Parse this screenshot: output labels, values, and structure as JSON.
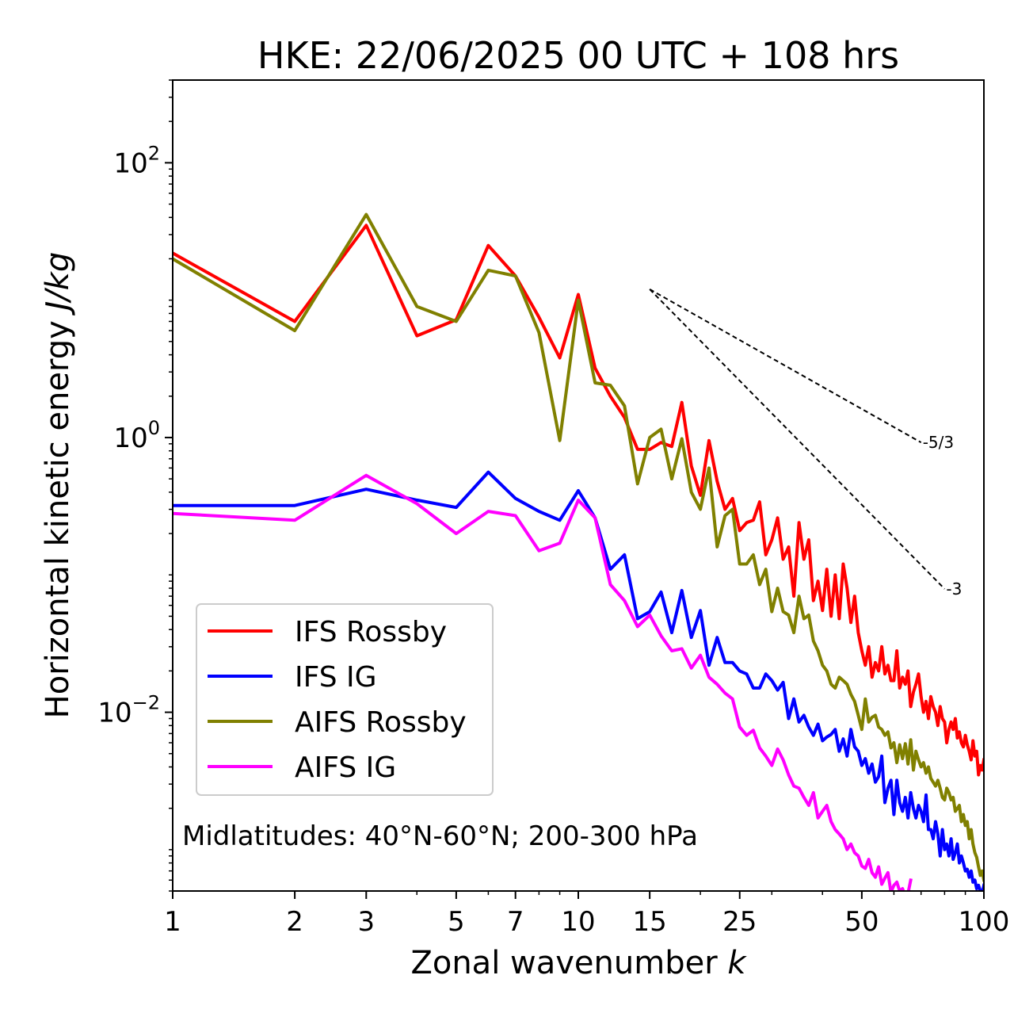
{
  "chart_data": {
    "type": "line",
    "title": "HKE: 22/06/2025 00 UTC + 108 hrs",
    "xlabel": "Zonal wavenumber",
    "xlabel_var": "k",
    "ylabel": "Horizontal kinetic energy",
    "ylabel_unit": "J/kg",
    "xscale": "log",
    "yscale": "log",
    "xlim": [
      1,
      100
    ],
    "ylim": [
      0.0005,
      400
    ],
    "x_ticks": [
      {
        "value": 1,
        "label": "1"
      },
      {
        "value": 2,
        "label": "2"
      },
      {
        "value": 3,
        "label": "3"
      },
      {
        "value": 5,
        "label": "5"
      },
      {
        "value": 7,
        "label": "7"
      },
      {
        "value": 10,
        "label": "10"
      },
      {
        "value": 15,
        "label": "15"
      },
      {
        "value": 25,
        "label": "25"
      },
      {
        "value": 50,
        "label": "50"
      },
      {
        "value": 100,
        "label": "100"
      }
    ],
    "y_ticks": [
      {
        "value": 100,
        "base": "10",
        "exp": "2"
      },
      {
        "value": 1,
        "base": "10",
        "exp": "0"
      },
      {
        "value": 0.01,
        "base": "10",
        "exp": "−2"
      }
    ],
    "annotation": "Midlatitudes: 40°N-60°N; 200-300 hPa",
    "legend_position": "lower-left",
    "reference_lines": [
      {
        "label": "-5/3",
        "slope": -1.6667,
        "x": [
          15,
          70
        ],
        "y0": 12
      },
      {
        "label": "-3",
        "slope": -3,
        "x": [
          15,
          80
        ],
        "y0": 12
      }
    ],
    "series": [
      {
        "name": "IFS Rossby",
        "color": "#ff0000",
        "x": [
          1,
          2,
          3,
          4,
          5,
          6,
          7,
          8,
          9,
          10,
          11,
          12,
          13,
          14,
          15,
          16,
          17,
          18,
          19,
          20,
          21,
          22,
          23,
          24,
          25,
          26,
          27,
          28,
          29,
          30,
          31,
          32,
          33,
          34,
          35,
          36,
          37,
          38,
          39,
          40,
          41,
          42,
          43,
          44,
          45,
          46,
          47,
          48,
          49,
          50,
          51,
          52,
          53,
          54,
          55,
          56,
          57,
          58,
          59,
          60,
          61,
          62,
          63,
          64,
          65,
          66,
          67,
          68,
          69,
          70,
          71,
          72,
          73,
          74,
          75,
          76,
          77,
          78,
          79,
          80,
          81,
          82,
          83,
          84,
          85,
          86,
          87,
          88,
          89,
          90,
          91,
          92,
          93,
          94,
          95,
          96,
          97,
          98,
          99,
          100
        ],
        "values": [
          22.0,
          7.0,
          35.0,
          5.5,
          7.2,
          25.0,
          15.0,
          7.5,
          3.8,
          11.0,
          3.2,
          2.0,
          1.4,
          0.82,
          0.82,
          0.92,
          0.86,
          1.8,
          0.62,
          0.38,
          0.95,
          0.48,
          0.3,
          0.36,
          0.21,
          0.24,
          0.25,
          0.34,
          0.14,
          0.18,
          0.26,
          0.13,
          0.16,
          0.07,
          0.24,
          0.13,
          0.18,
          0.065,
          0.09,
          0.055,
          0.11,
          0.05,
          0.1,
          0.048,
          0.12,
          0.08,
          0.045,
          0.07,
          0.038,
          0.028,
          0.022,
          0.03,
          0.018,
          0.023,
          0.02,
          0.03,
          0.019,
          0.022,
          0.017,
          0.017,
          0.028,
          0.015,
          0.018,
          0.016,
          0.02,
          0.011,
          0.014,
          0.016,
          0.019,
          0.013,
          0.01,
          0.012,
          0.009,
          0.013,
          0.011,
          0.01,
          0.008,
          0.011,
          0.009,
          0.0085,
          0.006,
          0.0075,
          0.0085,
          0.0075,
          0.009,
          0.0065,
          0.0072,
          0.006,
          0.0056,
          0.0068,
          0.0058,
          0.0052,
          0.0045,
          0.0062,
          0.0048,
          0.0052,
          0.0035,
          0.0041,
          0.0038,
          0.0045
        ]
      },
      {
        "name": "IFS IG",
        "color": "#0000ff",
        "x": [
          1,
          2,
          3,
          4,
          5,
          6,
          7,
          8,
          9,
          10,
          11,
          12,
          13,
          14,
          15,
          16,
          17,
          18,
          19,
          20,
          21,
          22,
          23,
          24,
          25,
          26,
          27,
          28,
          29,
          30,
          31,
          32,
          33,
          34,
          35,
          36,
          37,
          38,
          39,
          40,
          41,
          42,
          43,
          44,
          45,
          46,
          47,
          48,
          49,
          50,
          51,
          52,
          53,
          54,
          55,
          56,
          57,
          58,
          59,
          60,
          61,
          62,
          63,
          64,
          65,
          66,
          67,
          68,
          69,
          70,
          71,
          72,
          73,
          74,
          75,
          76,
          77,
          78,
          79,
          80,
          81,
          82,
          83,
          84,
          85,
          86,
          87,
          88,
          89,
          90,
          91,
          92,
          93,
          94,
          95,
          96,
          97,
          98,
          99,
          100
        ],
        "values": [
          0.32,
          0.32,
          0.42,
          0.35,
          0.31,
          0.56,
          0.36,
          0.29,
          0.25,
          0.41,
          0.26,
          0.11,
          0.14,
          0.048,
          0.054,
          0.075,
          0.038,
          0.077,
          0.035,
          0.055,
          0.022,
          0.035,
          0.023,
          0.023,
          0.02,
          0.019,
          0.015,
          0.015,
          0.019,
          0.017,
          0.0145,
          0.0165,
          0.009,
          0.0125,
          0.0085,
          0.0095,
          0.0078,
          0.0068,
          0.0082,
          0.0062,
          0.0066,
          0.0069,
          0.0075,
          0.0052,
          0.0064,
          0.0048,
          0.0075,
          0.0056,
          0.0052,
          0.0041,
          0.0046,
          0.0036,
          0.0042,
          0.0031,
          0.0034,
          0.0048,
          0.0022,
          0.0028,
          0.0032,
          0.0018,
          0.0032,
          0.0022,
          0.0019,
          0.0024,
          0.0017,
          0.0026,
          0.002,
          0.0017,
          0.0021,
          0.0019,
          0.0016,
          0.0025,
          0.0014,
          0.0014,
          0.0012,
          0.0016,
          0.0013,
          0.0009,
          0.0014,
          0.001,
          0.0011,
          0.0009,
          0.0012,
          0.00085,
          0.00095,
          0.0011,
          0.0008,
          0.0009,
          0.0008,
          0.0007,
          0.00072,
          0.00063,
          0.0007,
          0.00058,
          0.0006,
          0.00052,
          0.00055,
          0.0005,
          0.00048,
          0.00055
        ]
      },
      {
        "name": "AIFS Rossby",
        "color": "#808000",
        "x": [
          1,
          2,
          3,
          4,
          5,
          6,
          7,
          8,
          9,
          10,
          11,
          12,
          13,
          14,
          15,
          16,
          17,
          18,
          19,
          20,
          21,
          22,
          23,
          24,
          25,
          26,
          27,
          28,
          29,
          30,
          31,
          32,
          33,
          34,
          35,
          36,
          37,
          38,
          39,
          40,
          41,
          42,
          43,
          44,
          45,
          46,
          47,
          48,
          49,
          50,
          51,
          52,
          53,
          54,
          55,
          56,
          57,
          58,
          59,
          60,
          61,
          62,
          63,
          64,
          65,
          66,
          67,
          68,
          69,
          70,
          71,
          72,
          73,
          74,
          75,
          76,
          77,
          78,
          79,
          80,
          81,
          82,
          83,
          84,
          85,
          86,
          87,
          88,
          89,
          90,
          91,
          92,
          93,
          94,
          95,
          96,
          97,
          98,
          99,
          100
        ],
        "values": [
          20.0,
          6.0,
          42.0,
          9.0,
          7.0,
          16.5,
          15.0,
          5.8,
          0.95,
          10.0,
          2.5,
          2.4,
          1.7,
          0.46,
          1.0,
          1.15,
          0.5,
          0.98,
          0.4,
          0.3,
          0.6,
          0.16,
          0.27,
          0.3,
          0.12,
          0.12,
          0.14,
          0.085,
          0.11,
          0.054,
          0.08,
          0.054,
          0.051,
          0.038,
          0.07,
          0.048,
          0.051,
          0.033,
          0.028,
          0.022,
          0.02,
          0.016,
          0.015,
          0.018,
          0.017,
          0.016,
          0.0135,
          0.012,
          0.0095,
          0.0075,
          0.0125,
          0.0085,
          0.0092,
          0.0095,
          0.0078,
          0.0075,
          0.0068,
          0.0072,
          0.0055,
          0.006,
          0.0043,
          0.0058,
          0.0046,
          0.0059,
          0.0042,
          0.0063,
          0.0038,
          0.0052,
          0.0045,
          0.004,
          0.0043,
          0.0036,
          0.004,
          0.0033,
          0.0031,
          0.0029,
          0.0032,
          0.0028,
          0.0024,
          0.0023,
          0.0028,
          0.0026,
          0.0023,
          0.0024,
          0.0019,
          0.002,
          0.0021,
          0.0016,
          0.0018,
          0.0015,
          0.0016,
          0.0012,
          0.0014,
          0.0011,
          0.00095,
          0.00088,
          0.00075,
          0.00065,
          0.0007,
          0.0006
        ]
      },
      {
        "name": "AIFS IG",
        "color": "#ff00ff",
        "x": [
          1,
          2,
          3,
          4,
          5,
          6,
          7,
          8,
          9,
          10,
          11,
          12,
          13,
          14,
          15,
          16,
          17,
          18,
          19,
          20,
          21,
          22,
          23,
          24,
          25,
          26,
          27,
          28,
          29,
          30,
          31,
          32,
          33,
          34,
          35,
          36,
          37,
          38,
          39,
          40,
          41,
          42,
          43,
          44,
          45,
          46,
          47,
          48,
          49,
          50,
          51,
          52,
          53,
          54,
          55,
          56,
          57,
          58,
          59,
          60,
          61,
          62,
          63,
          64,
          65,
          66
        ],
        "values": [
          0.28,
          0.25,
          0.53,
          0.33,
          0.2,
          0.29,
          0.27,
          0.15,
          0.17,
          0.35,
          0.26,
          0.085,
          0.065,
          0.042,
          0.051,
          0.036,
          0.028,
          0.029,
          0.021,
          0.026,
          0.018,
          0.016,
          0.0138,
          0.0125,
          0.0078,
          0.0068,
          0.0074,
          0.0055,
          0.0048,
          0.0041,
          0.0054,
          0.0045,
          0.0035,
          0.0029,
          0.0028,
          0.0024,
          0.0021,
          0.0026,
          0.0017,
          0.0019,
          0.0021,
          0.0016,
          0.0014,
          0.0013,
          0.0012,
          0.001,
          0.0011,
          0.00095,
          0.0009,
          0.00076,
          0.00073,
          0.00085,
          0.00068,
          0.00063,
          0.00075,
          0.00056,
          0.00062,
          0.00068,
          0.00049,
          0.00055,
          0.00058,
          0.0005,
          0.00052,
          0.00045,
          0.00048,
          0.0006
        ]
      }
    ]
  }
}
